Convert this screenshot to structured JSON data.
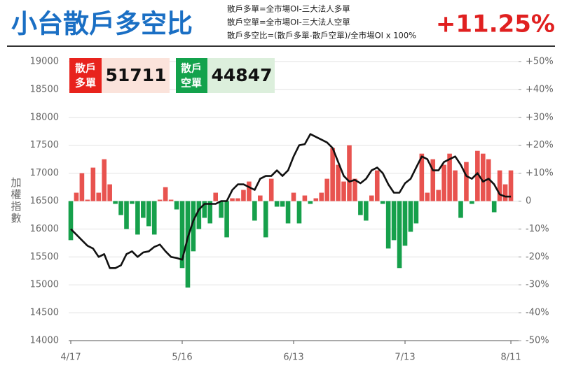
{
  "header": {
    "title": "小台散戶多空比",
    "notes": [
      "散戶多單=全市場OI-三大法人多單",
      "散戶空單=全市場OI-三大法人空單",
      "散戶多空比=(散戶多單-散戶空單)/全市場OI x 100%"
    ],
    "ratio": "+11.25%"
  },
  "stats": {
    "long_label": [
      "散戶",
      "多單"
    ],
    "long_value": "51711",
    "short_label": [
      "散戶",
      "空單"
    ],
    "short_value": "44847"
  },
  "chart_data": {
    "type": "combo",
    "y_label": "加權指數",
    "categories": [
      "4/17",
      null,
      null,
      null,
      null,
      null,
      null,
      null,
      null,
      null,
      null,
      null,
      null,
      null,
      null,
      null,
      null,
      null,
      null,
      null,
      "5/16",
      null,
      null,
      null,
      null,
      null,
      null,
      null,
      null,
      null,
      null,
      null,
      null,
      null,
      null,
      null,
      null,
      null,
      null,
      null,
      "6/13",
      null,
      null,
      null,
      null,
      null,
      null,
      null,
      null,
      null,
      null,
      null,
      null,
      null,
      null,
      null,
      null,
      null,
      null,
      null,
      "7/13",
      null,
      null,
      null,
      null,
      null,
      null,
      null,
      null,
      null,
      null,
      null,
      null,
      null,
      null,
      null,
      null,
      null,
      null,
      "8/11"
    ],
    "series": [
      {
        "type": "bar",
        "axis": "y2",
        "positive_color": "#e8534f",
        "negative_color": "#16a04b",
        "values": [
          -14,
          3,
          10,
          0.5,
          12,
          3,
          15,
          6,
          -1,
          -5,
          -10,
          -1,
          -12,
          -6,
          -9,
          -12,
          0.5,
          5,
          0.5,
          -3,
          -24,
          -31,
          -18,
          -10,
          -6,
          -8,
          3,
          -6,
          -13,
          1,
          1,
          4,
          7,
          -7,
          2,
          -13,
          8,
          -2,
          -2,
          -8,
          3,
          -8,
          2,
          -1,
          1,
          3,
          8,
          19,
          13,
          7,
          20,
          8,
          -5,
          -7,
          2,
          11,
          -1,
          -17,
          -14,
          -24,
          -16,
          -11,
          -8,
          17,
          3,
          15,
          4,
          13,
          17,
          11,
          -6,
          14,
          -1,
          18,
          17,
          15,
          -4,
          11,
          6,
          11
        ]
      },
      {
        "type": "line",
        "axis": "y",
        "color": "#111111",
        "values": [
          16000,
          15900,
          15800,
          15700,
          15650,
          15500,
          15550,
          15300,
          15300,
          15350,
          15550,
          15600,
          15500,
          15580,
          15600,
          15680,
          15720,
          15600,
          15500,
          15480,
          15450,
          15850,
          16150,
          16350,
          16450,
          16450,
          16450,
          16500,
          16500,
          16700,
          16800,
          16800,
          16750,
          16700,
          16900,
          16950,
          16950,
          17050,
          16950,
          17050,
          17300,
          17500,
          17520,
          17700,
          17650,
          17600,
          17550,
          17450,
          17200,
          16950,
          16850,
          16880,
          16820,
          16900,
          17050,
          17100,
          17000,
          16800,
          16650,
          16650,
          16820,
          16900,
          17100,
          17300,
          17250,
          17050,
          17050,
          17200,
          17250,
          17300,
          17150,
          16950,
          16900,
          17000,
          16850,
          16900,
          16800,
          16620,
          16580,
          16580
        ]
      }
    ],
    "ylim": [
      14000,
      19000
    ],
    "yticks": [
      14000,
      14500,
      15000,
      15500,
      16000,
      16500,
      17000,
      17500,
      18000,
      18500,
      19000
    ],
    "y2lim": [
      -50,
      50
    ],
    "y2ticks": [
      {
        "value": -50,
        "label": "-50%"
      },
      {
        "value": -40,
        "label": "-40%"
      },
      {
        "value": -30,
        "label": "-30%"
      },
      {
        "value": -20,
        "label": "-20%"
      },
      {
        "value": -10,
        "label": "-10%"
      },
      0,
      {
        "value": 10,
        "label": "+10%"
      },
      {
        "value": 20,
        "label": "+20%"
      },
      {
        "value": 30,
        "label": "+30%"
      },
      {
        "value": 40,
        "label": "+40%"
      },
      {
        "value": 50,
        "label": "+50%"
      }
    ],
    "grid": true
  }
}
